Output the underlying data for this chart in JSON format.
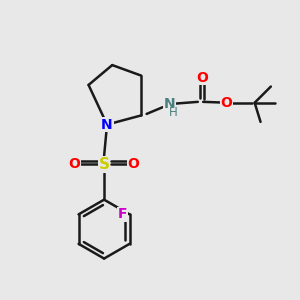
{
  "bg_color": "#e8e8e8",
  "bond_color": "#1a1a1a",
  "bond_width": 1.8,
  "N_color": "#0000ff",
  "NH_color": "#4a8080",
  "O_color": "#ff0000",
  "S_color": "#cccc00",
  "F_color": "#cc00cc",
  "figsize": [
    3.0,
    3.0
  ],
  "dpi": 100,
  "xlim": [
    0,
    10
  ],
  "ylim": [
    0,
    10
  ]
}
